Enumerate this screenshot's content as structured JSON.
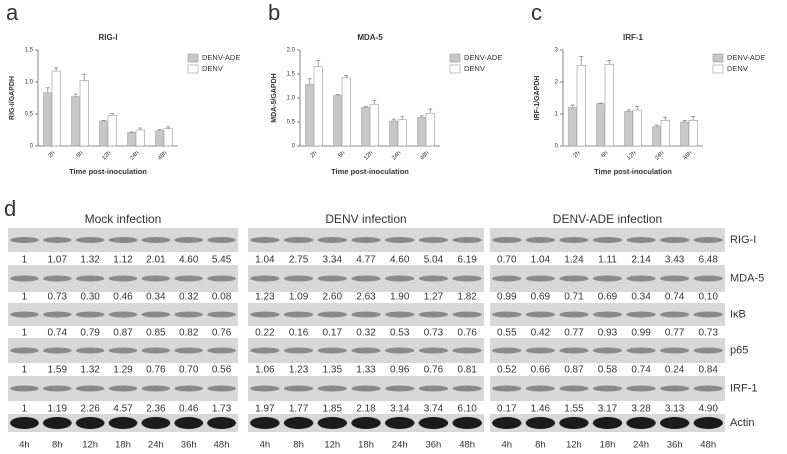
{
  "chart_data": [
    {
      "type": "bar",
      "label": "a",
      "title": "RIG-I",
      "y_label": "RIG-I/GAPDH",
      "x_label": "Time post-inoculation",
      "categories": [
        "2h",
        "6h",
        "12h",
        "24h",
        "48h"
      ],
      "series": [
        {
          "name": "DENV-ADE",
          "color": "#c8c8c8",
          "values": [
            0.83,
            0.77,
            0.39,
            0.21,
            0.24
          ],
          "errors": [
            0.08,
            0.04,
            0.01,
            0.01,
            0.02
          ]
        },
        {
          "name": "DENV",
          "color": "#ffffff",
          "values": [
            1.17,
            1.02,
            0.48,
            0.25,
            0.27
          ],
          "errors": [
            0.05,
            0.1,
            0.03,
            0.03,
            0.03
          ]
        }
      ],
      "ylim": [
        0,
        1.5
      ],
      "yticks": [
        0,
        0.5,
        {
          "value": 1,
          "label": "1.0"
        },
        1.5
      ]
    },
    {
      "type": "bar",
      "label": "b",
      "title": "MDA-5",
      "y_label": "MDA-5/GAPDH",
      "x_label": "Time post-inoculation",
      "categories": [
        "2h",
        "6h",
        "12h",
        "24h",
        "48h"
      ],
      "series": [
        {
          "name": "DENV-ADE",
          "color": "#c8c8c8",
          "values": [
            1.28,
            1.05,
            0.8,
            0.52,
            0.6
          ],
          "errors": [
            0.12,
            0.02,
            0.02,
            0.04,
            0.03
          ]
        },
        {
          "name": "DENV",
          "color": "#ffffff",
          "values": [
            1.65,
            1.42,
            0.87,
            0.55,
            0.68
          ],
          "errors": [
            0.13,
            0.05,
            0.08,
            0.07,
            0.09
          ]
        }
      ],
      "ylim": [
        0,
        2
      ],
      "yticks": [
        0,
        0.5,
        {
          "value": 1,
          "label": "1.0"
        },
        1.5,
        {
          "value": 2,
          "label": "2.0"
        }
      ]
    },
    {
      "type": "bar",
      "label": "c",
      "title": "IRF-1",
      "y_label": "IRF-1/GAPDH",
      "x_label": "Time post-inoculation",
      "categories": [
        "2h",
        "6h",
        "12h",
        "24h",
        "48h"
      ],
      "series": [
        {
          "name": "DENV-ADE",
          "color": "#c8c8c8",
          "values": [
            1.2,
            1.32,
            1.08,
            0.6,
            0.75
          ],
          "errors": [
            0.08,
            0.02,
            0.05,
            0.05,
            0.05
          ]
        },
        {
          "name": "DENV",
          "color": "#ffffff",
          "values": [
            2.52,
            2.55,
            1.12,
            0.8,
            0.8
          ],
          "errors": [
            0.28,
            0.12,
            0.12,
            0.1,
            0.12
          ]
        }
      ],
      "ylim": [
        0,
        3
      ],
      "yticks": [
        0,
        1,
        2,
        3
      ]
    }
  ],
  "panel_d": {
    "label": "d",
    "times": [
      "4h",
      "8h",
      "12h",
      "18h",
      "24h",
      "36h",
      "48h"
    ],
    "row_labels": [
      "RIG-I",
      "MDA-5",
      "IκB",
      "p65",
      "IRF-1",
      "Actin"
    ],
    "groups": [
      {
        "title": "Mock infection",
        "rows": [
          [
            "1",
            "1.07",
            "1.32",
            "1.12",
            "2.01",
            "4.60",
            "5.45"
          ],
          [
            "1",
            "0.73",
            "0.30",
            "0.46",
            "0.34",
            "0.32",
            "0.08"
          ],
          [
            "1",
            "0.74",
            "0.79",
            "0.87",
            "0.85",
            "0.82",
            "0.76"
          ],
          [
            "1",
            "1.59",
            "1.32",
            "1.29",
            "0.76",
            "0.70",
            "0.56"
          ],
          [
            "1",
            "1.19",
            "2.26",
            "4.57",
            "2.36",
            "0.46",
            "1.73"
          ]
        ]
      },
      {
        "title": "DENV infection",
        "rows": [
          [
            "1.04",
            "2.75",
            "3.34",
            "4.77",
            "4.60",
            "5.04",
            "6.19"
          ],
          [
            "1.23",
            "1.09",
            "2.60",
            "2.63",
            "1.90",
            "1.27",
            "1.82"
          ],
          [
            "0.22",
            "0.16",
            "0.17",
            "0.32",
            "0.53",
            "0.73",
            "0.76"
          ],
          [
            "1.06",
            "1.23",
            "1.35",
            "1.33",
            "0.96",
            "0.76",
            "0.81"
          ],
          [
            "1.97",
            "1.77",
            "1.85",
            "2.18",
            "3.14",
            "3.74",
            "6.10"
          ]
        ]
      },
      {
        "title": "DENV-ADE infection",
        "rows": [
          [
            "0.70",
            "1.04",
            "1.24",
            "1.11",
            "2.14",
            "3.43",
            "6.48"
          ],
          [
            "0.99",
            "0.69",
            "0.71",
            "0.69",
            "0.34",
            "0.74",
            "0.10"
          ],
          [
            "0.55",
            "0.42",
            "0.77",
            "0.93",
            "0.99",
            "0.77",
            "0.73"
          ],
          [
            "0.52",
            "0.66",
            "0.87",
            "0.58",
            "0.74",
            "0.24",
            "0.84"
          ],
          [
            "0.17",
            "1.46",
            "1.55",
            "3.17",
            "3.28",
            "3.13",
            "4.90"
          ]
        ]
      }
    ]
  }
}
